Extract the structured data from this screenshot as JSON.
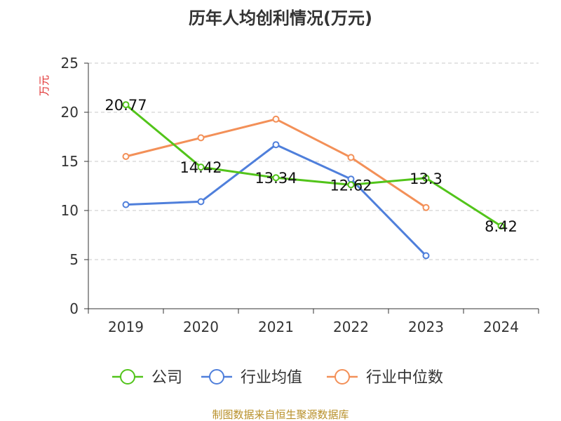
{
  "chart_data": {
    "type": "line",
    "title": "历年人均创利情况(万元)",
    "ylabel": "万元",
    "xlabel": "",
    "ylim": [
      0,
      25
    ],
    "yticks": [
      0,
      5,
      10,
      15,
      20,
      25
    ],
    "categories": [
      "2019",
      "2020",
      "2021",
      "2022",
      "2023",
      "2024"
    ],
    "grid": true,
    "legend_position": "bottom",
    "series": [
      {
        "name": "公司",
        "color": "#52c41a",
        "values": [
          20.77,
          14.42,
          13.34,
          12.62,
          13.3,
          8.42
        ],
        "labels": [
          "20.77",
          "14.42",
          "13.34",
          "12.62",
          "13.3",
          "8.42"
        ]
      },
      {
        "name": "行业均值",
        "color": "#4f7fdb",
        "values": [
          10.6,
          10.9,
          16.7,
          13.2,
          5.4,
          null
        ]
      },
      {
        "name": "行业中位数",
        "color": "#f39058",
        "values": [
          15.5,
          17.4,
          19.3,
          15.4,
          10.3,
          null
        ]
      }
    ],
    "source": "制图数据来自恒生聚源数据库"
  }
}
